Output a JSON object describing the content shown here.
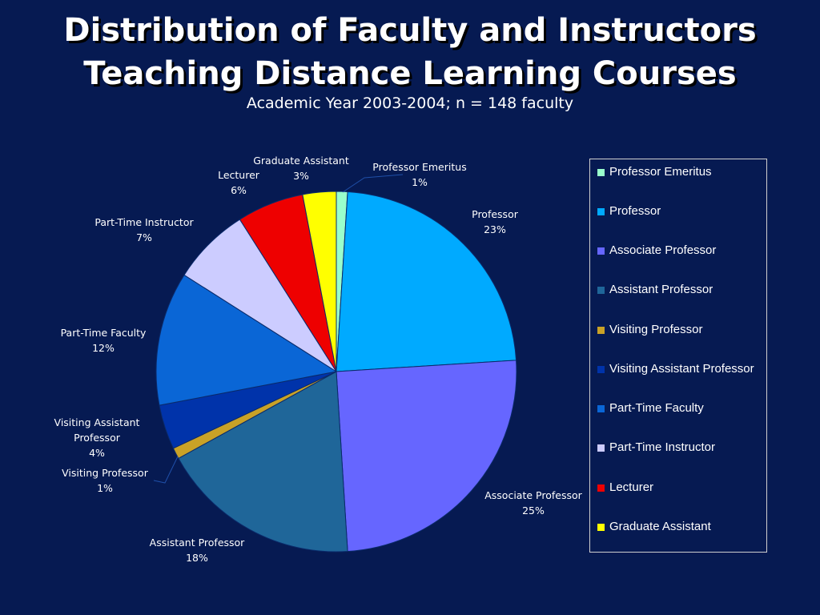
{
  "title_line1": "Distribution of Faculty and Instructors",
  "title_line2": "Teaching Distance Learning Courses",
  "subtitle": "Academic Year 2003-2004; n = 148 faculty",
  "colors": {
    "background": "#061a52",
    "text": "#ffffff",
    "leader_line": "#1f4fa8"
  },
  "chart_data": {
    "type": "pie",
    "title": "Distribution of Faculty and Instructors Teaching Distance Learning Courses",
    "subtitle": "Academic Year 2003-2004; n = 148 faculty",
    "legend_position": "right",
    "slices": [
      {
        "label": "Professor Emeritus",
        "value": 1,
        "display_label": "1%",
        "color": "#99ffcc"
      },
      {
        "label": "Professor",
        "value": 23,
        "display_label": "23%",
        "color": "#00aaff"
      },
      {
        "label": "Associate Professor",
        "value": 25,
        "display_label": "25%",
        "color": "#6666ff"
      },
      {
        "label": "Assistant Professor",
        "value": 18,
        "display_label": "18%",
        "color": "#1f6699"
      },
      {
        "label": "Visiting Professor",
        "value": 1,
        "display_label": "1%",
        "color": "#c9a227"
      },
      {
        "label": "Visiting Assistant Professor",
        "value": 4,
        "display_label": "4%",
        "color": "#0033aa"
      },
      {
        "label": "Part-Time Faculty",
        "value": 12,
        "display_label": "12%",
        "color": "#0a66d6"
      },
      {
        "label": "Part-Time Instructor",
        "value": 7,
        "display_label": "7%",
        "color": "#ccccff"
      },
      {
        "label": "Lecturer",
        "value": 6,
        "display_label": "6%",
        "color": "#ee0000"
      },
      {
        "label": "Graduate Assistant",
        "value": 3,
        "display_label": "3%",
        "color": "#ffff00"
      }
    ],
    "legend": [
      "Professor Emeritus",
      "Professor",
      "Associate Professor",
      "Assistant Professor",
      "Visiting Professor",
      "Visiting Assistant Professor",
      "Part-Time Faculty",
      "Part-Time Instructor",
      "Lecturer",
      "Graduate Assistant"
    ]
  }
}
